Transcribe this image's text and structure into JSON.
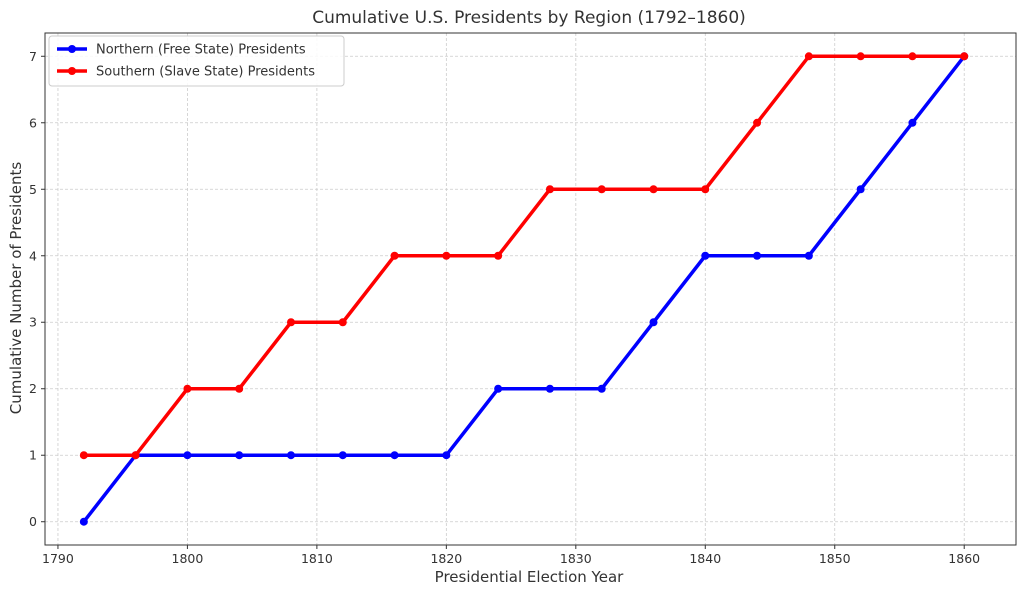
{
  "chart_data": {
    "type": "line",
    "title": "Cumulative U.S. Presidents by Region (1792–1860)",
    "xlabel": "Presidential Election Year",
    "ylabel": "Cumulative Number of Presidents",
    "xlim": [
      1789,
      1864
    ],
    "ylim": [
      -0.35,
      7.35
    ],
    "xticks": [
      1790,
      1800,
      1810,
      1820,
      1830,
      1840,
      1850,
      1860
    ],
    "yticks": [
      0,
      1,
      2,
      3,
      4,
      5,
      6,
      7
    ],
    "grid": true,
    "legend_position": "top-left",
    "x": [
      1792,
      1796,
      1800,
      1804,
      1808,
      1812,
      1816,
      1820,
      1824,
      1828,
      1832,
      1836,
      1840,
      1844,
      1848,
      1852,
      1856,
      1860
    ],
    "series": [
      {
        "name": "Northern (Free State) Presidents",
        "color": "#0000ff",
        "values": [
          0,
          1,
          1,
          1,
          1,
          1,
          1,
          1,
          2,
          2,
          2,
          3,
          4,
          4,
          4,
          5,
          6,
          7
        ]
      },
      {
        "name": "Southern (Slave State) Presidents",
        "color": "#ff0000",
        "values": [
          1,
          1,
          2,
          2,
          3,
          3,
          4,
          4,
          4,
          5,
          5,
          5,
          5,
          6,
          7,
          7,
          7,
          7
        ]
      }
    ]
  }
}
